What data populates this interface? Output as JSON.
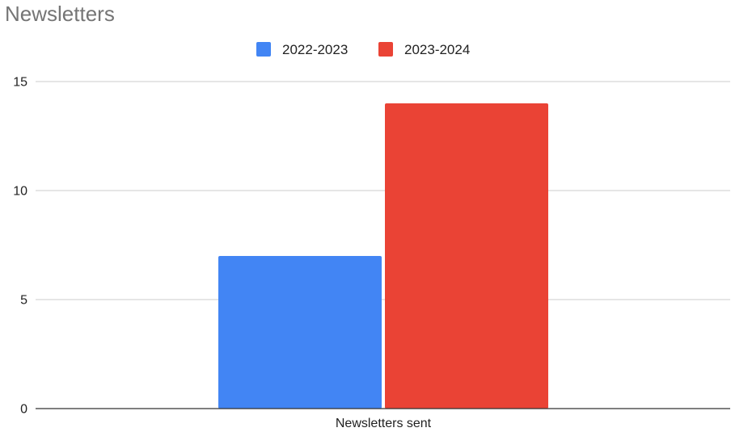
{
  "chart_data": {
    "type": "bar",
    "title": "Newsletters",
    "categories": [
      "Newsletters sent"
    ],
    "series": [
      {
        "name": "2022-2023",
        "values": [
          7
        ],
        "color": "#4285F4"
      },
      {
        "name": "2023-2024",
        "values": [
          14
        ],
        "color": "#EA4335"
      }
    ],
    "yticks": [
      0,
      5,
      10,
      15
    ],
    "ylim": [
      0,
      15
    ],
    "grid": true,
    "legend_position": "top-center"
  }
}
